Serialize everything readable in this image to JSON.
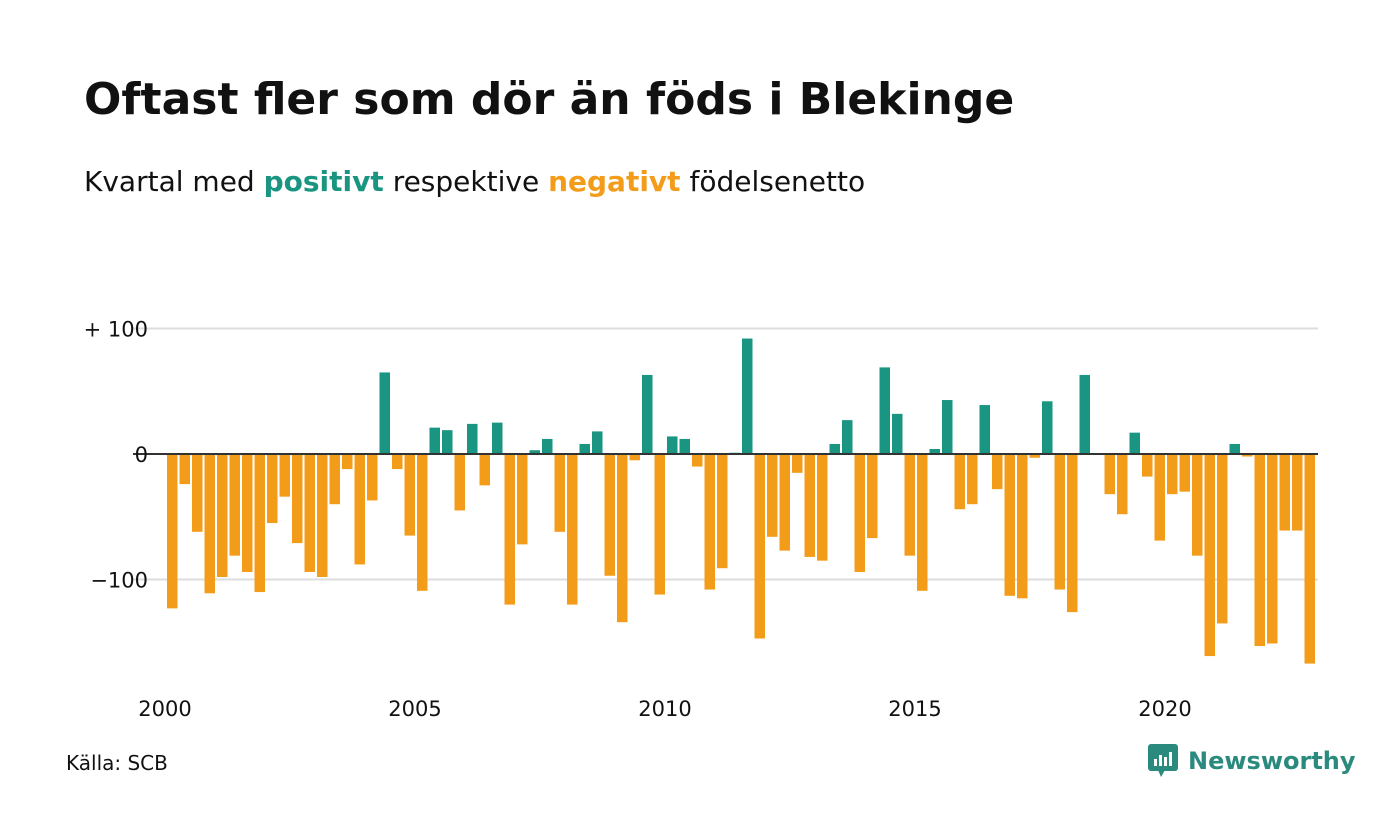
{
  "header": {
    "title": "Oftast fler som dör än föds i Blekinge",
    "subtitle_pre": "Kvartal med",
    "subtitle_pos": "positivt",
    "subtitle_mid": "respektive",
    "subtitle_neg": "negativt",
    "subtitle_post": "födelsenetto"
  },
  "footer": {
    "source": "Källa: SCB",
    "brand": "Newsworthy"
  },
  "colors": {
    "positive": "#1a9582",
    "negative": "#f39c1a",
    "grid": "#dddddd",
    "brand": "#2a8a7d"
  },
  "chart_data": {
    "type": "bar",
    "title": "Oftast fler som dör än föds i Blekinge",
    "subtitle": "Kvartal med positivt respektive negativt födelsenetto",
    "x_start": 2000,
    "x_step": 0.25,
    "x_ticks": [
      {
        "value": 2000,
        "label": "2000"
      },
      {
        "value": 2005,
        "label": "2005"
      },
      {
        "value": 2010,
        "label": "2010"
      },
      {
        "value": 2015,
        "label": "2015"
      },
      {
        "value": 2020,
        "label": "2020"
      }
    ],
    "y_ticks": [
      {
        "value": 100,
        "label": "+ 100"
      },
      {
        "value": 0,
        "label": "0"
      },
      {
        "value": -100,
        "label": "−100"
      }
    ],
    "ylim": [
      -170,
      100
    ],
    "grid": true,
    "values": [
      -123,
      -24,
      -62,
      -111,
      -98,
      -81,
      -94,
      -110,
      -55,
      -34,
      -71,
      -94,
      -98,
      -40,
      -12,
      -88,
      -37,
      65,
      -12,
      -65,
      -109,
      21,
      19,
      -45,
      24,
      -25,
      25,
      -120,
      -72,
      3,
      12,
      -62,
      -120,
      8,
      18,
      -97,
      -134,
      -5,
      63,
      -112,
      14,
      12,
      -10,
      -108,
      -91,
      1,
      92,
      -147,
      -66,
      -77,
      -15,
      -82,
      -85,
      8,
      27,
      -94,
      -67,
      69,
      32,
      -81,
      -109,
      4,
      43,
      -44,
      -40,
      39,
      -28,
      -113,
      -115,
      -3,
      42,
      -108,
      -126,
      63,
      0,
      -32,
      -48,
      17,
      -18,
      -69,
      -32,
      -30,
      -81,
      -161,
      -135,
      8,
      -2,
      -153,
      -151,
      -61,
      -61,
      -167
    ]
  }
}
